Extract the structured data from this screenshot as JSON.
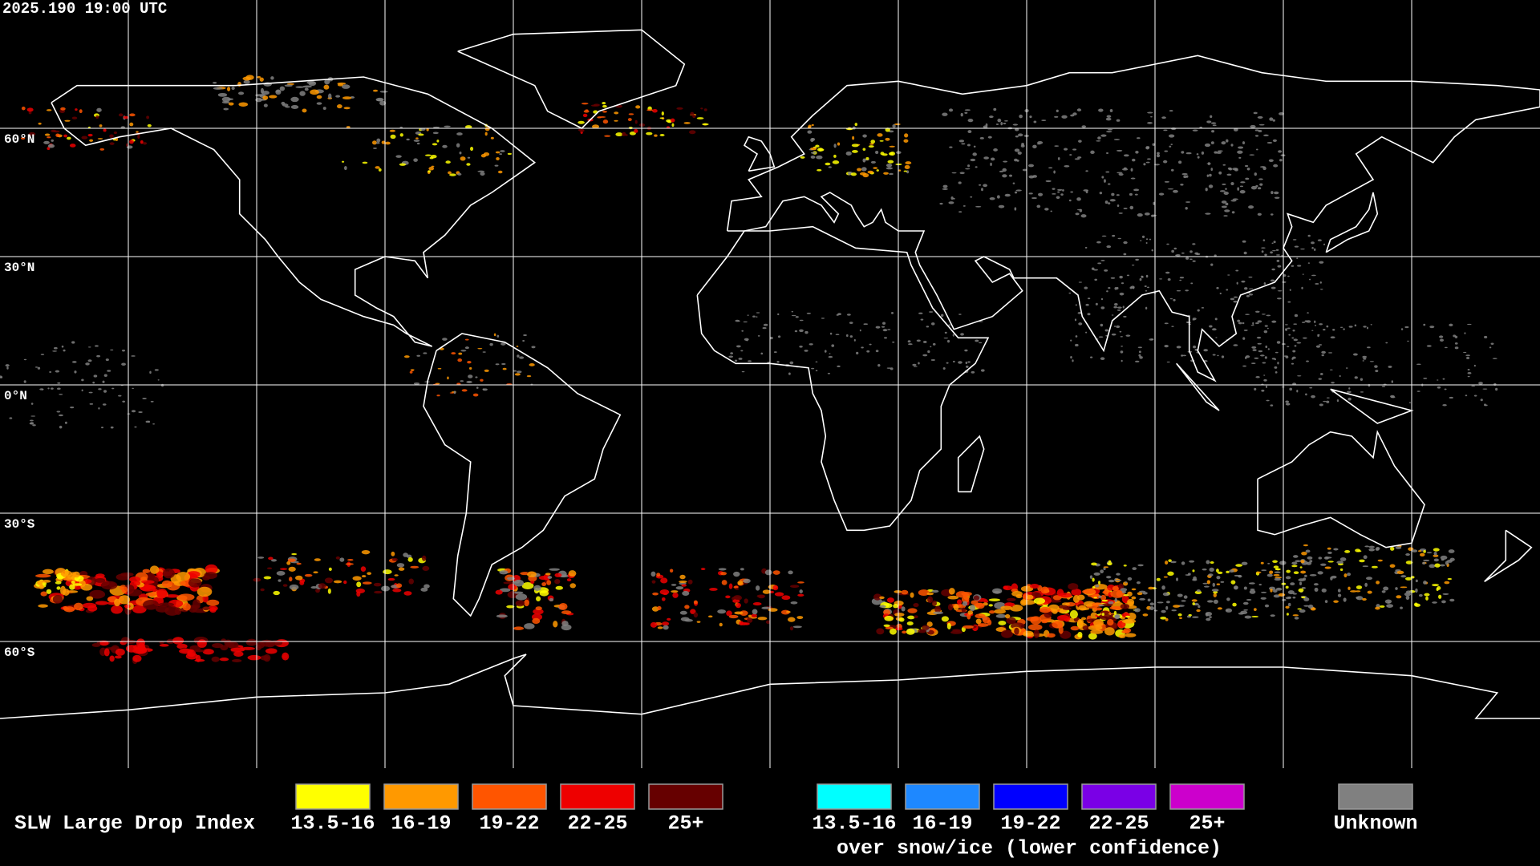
{
  "header": {
    "timestamp": "2025.190 19:00 UTC"
  },
  "map": {
    "lat_labels": [
      "60°N",
      "30°N",
      "0°N",
      "30°S",
      "60°S"
    ]
  },
  "legend": {
    "title": "SLW Large Drop Index",
    "groups": [
      {
        "items": [
          {
            "label": "13.5-16",
            "color": "#ffff00"
          },
          {
            "label": "16-19",
            "color": "#ff9900"
          },
          {
            "label": "19-22",
            "color": "#ff5500"
          },
          {
            "label": "22-25",
            "color": "#ee0000"
          },
          {
            "label": "25+",
            "color": "#660000"
          }
        ]
      },
      {
        "items": [
          {
            "label": "13.5-16",
            "color": "#00ffff"
          },
          {
            "label": "16-19",
            "color": "#1e88ff"
          },
          {
            "label": "19-22",
            "color": "#0000ff"
          },
          {
            "label": "22-25",
            "color": "#7a00e6"
          },
          {
            "label": "25+",
            "color": "#cc00cc"
          }
        ]
      }
    ],
    "note": "over snow/ice (lower confidence)",
    "unknown": {
      "label": "Unknown",
      "color": "#808080"
    }
  }
}
